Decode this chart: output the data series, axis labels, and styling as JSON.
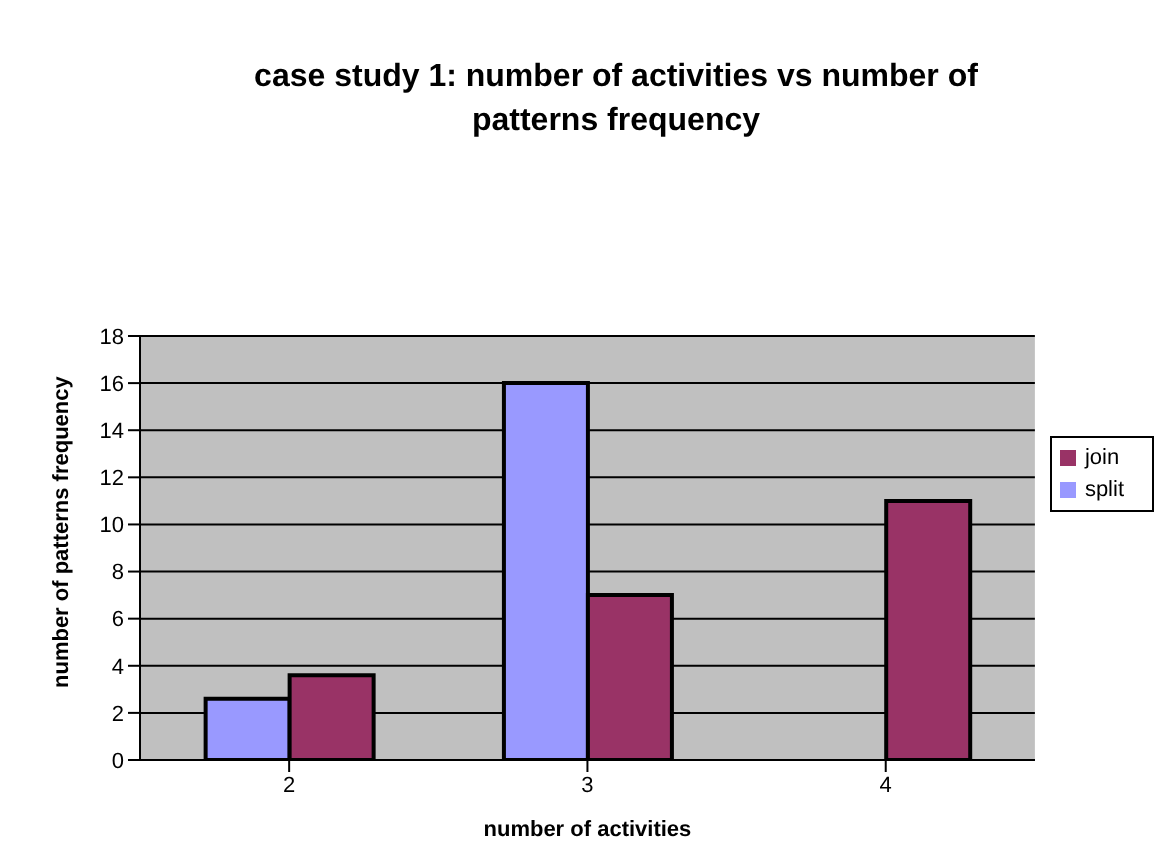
{
  "chart_data": {
    "type": "bar",
    "title": "case study 1: number of activities vs number of patterns frequency",
    "xlabel": "number of activities",
    "ylabel": "number of patterns frequency",
    "categories": [
      "2",
      "3",
      "4"
    ],
    "series": [
      {
        "name": "split",
        "color": "#9999ff",
        "values": [
          2.6,
          16,
          null
        ]
      },
      {
        "name": "join",
        "color": "#993366",
        "values": [
          3.6,
          7,
          11
        ]
      }
    ],
    "ylim": [
      0,
      18
    ],
    "yticks": [
      0,
      2,
      4,
      6,
      8,
      10,
      12,
      14,
      16,
      18
    ],
    "grid": "y",
    "legend": "right"
  }
}
